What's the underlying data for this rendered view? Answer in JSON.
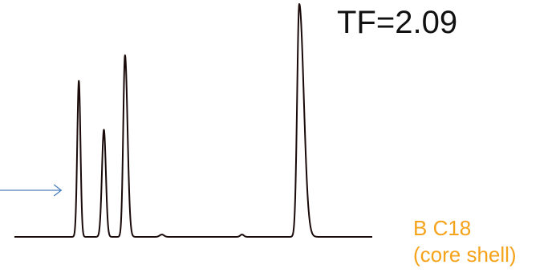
{
  "chart_data": {
    "type": "line",
    "title": "",
    "xlabel": "",
    "ylabel": "",
    "xlim": [
      0,
      100
    ],
    "ylim": [
      0,
      1
    ],
    "grid": false,
    "legend": "none",
    "series": [
      {
        "color": "#1a0a0a",
        "peaks": [
          {
            "retention": 18.0,
            "height": 0.67,
            "width": 0.45,
            "tailing": 1.0
          },
          {
            "retention": 25.0,
            "height": 0.46,
            "width": 0.55,
            "tailing": 1.0
          },
          {
            "retention": 30.9,
            "height": 0.78,
            "width": 0.5,
            "tailing": 1.4
          },
          {
            "retention": 41.2,
            "height": 0.01,
            "width": 0.6,
            "tailing": 1.0
          },
          {
            "retention": 63.6,
            "height": 0.01,
            "width": 0.5,
            "tailing": 1.0
          },
          {
            "retention": 79.6,
            "height": 1.0,
            "width": 0.6,
            "tailing": 2.09
          }
        ]
      }
    ],
    "annotations": [
      {
        "text": "TF=2.09"
      },
      {
        "text": "B C18",
        "color": "#F5A31A"
      },
      {
        "text": "(core shell)",
        "color": "#F5A31A"
      }
    ],
    "arrow": {
      "color": "#4A7EBB",
      "points_to_retention": 18.0
    }
  }
}
